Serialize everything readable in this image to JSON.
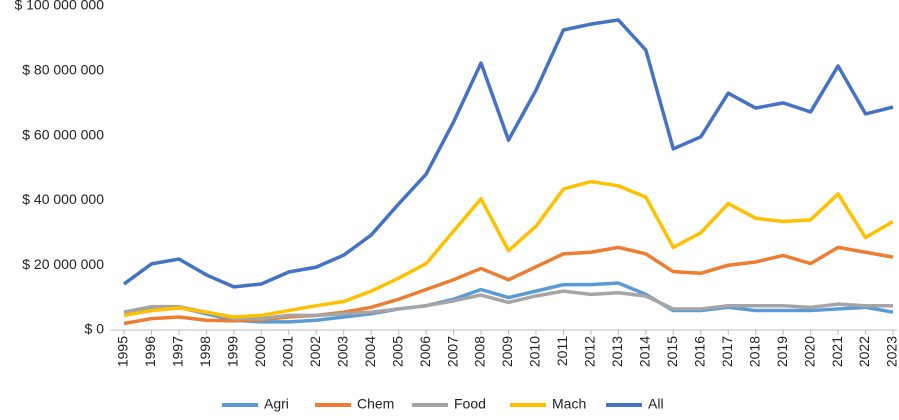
{
  "chart_data": {
    "type": "line",
    "categories": [
      "1995",
      "1996",
      "1997",
      "1998",
      "1999",
      "2000",
      "2001",
      "2002",
      "2003",
      "2004",
      "2005",
      "2006",
      "2007",
      "2008",
      "2009",
      "2010",
      "2011",
      "2012",
      "2013",
      "2014",
      "2015",
      "2016",
      "2017",
      "2018",
      "2019",
      "2020",
      "2021",
      "2022",
      "2023"
    ],
    "series": [
      {
        "name": "Agri",
        "color": "#5b9bd5",
        "values": [
          5500000,
          7000000,
          7000000,
          5000000,
          3000000,
          2500000,
          2500000,
          3000000,
          4000000,
          5000000,
          6500000,
          7500000,
          9500000,
          12500000,
          10000000,
          12000000,
          14000000,
          14000000,
          14500000,
          11000000,
          6000000,
          6000000,
          7000000,
          6000000,
          6000000,
          6000000,
          6500000,
          7000000,
          5500000
        ]
      },
      {
        "name": "Chem",
        "color": "#ed7d31",
        "values": [
          2000000,
          3500000,
          4000000,
          3000000,
          2800000,
          3200000,
          4000000,
          4500000,
          5500000,
          7000000,
          9500000,
          12500000,
          15500000,
          19000000,
          15500000,
          19500000,
          23500000,
          24000000,
          25500000,
          23500000,
          18000000,
          17500000,
          20000000,
          21000000,
          23000000,
          20500000,
          25500000,
          24000000,
          22500000
        ]
      },
      {
        "name": "Food",
        "color": "#a5a5a5",
        "values": [
          5500000,
          7200000,
          7200000,
          5500000,
          3500000,
          3500000,
          4500000,
          4500000,
          5000000,
          5500000,
          6500000,
          7500000,
          9000000,
          10800000,
          8500000,
          10500000,
          12000000,
          11000000,
          11500000,
          10500000,
          6500000,
          6500000,
          7500000,
          7500000,
          7500000,
          7000000,
          8000000,
          7500000,
          7500000
        ]
      },
      {
        "name": "Mach",
        "color": "#ffc000",
        "values": [
          4500000,
          6000000,
          6800000,
          5500000,
          4000000,
          4500000,
          6000000,
          7500000,
          8800000,
          12000000,
          16000000,
          20500000,
          30500000,
          40500000,
          24500000,
          32000000,
          43500000,
          45800000,
          44500000,
          41000000,
          25500000,
          30000000,
          39000000,
          34500000,
          33500000,
          34000000,
          42000000,
          28500000,
          33500000
        ]
      },
      {
        "name": "All",
        "color": "#4472c4",
        "values": [
          14200000,
          20400000,
          21900000,
          17000000,
          13300000,
          14200000,
          17900000,
          19400000,
          23100000,
          29300000,
          38900000,
          48100000,
          64200000,
          82400000,
          58600000,
          74000000,
          92600000,
          94400000,
          95700000,
          86400000,
          55900000,
          59600000,
          73100000,
          68500000,
          70100000,
          67300000,
          81500000,
          66700000,
          68800000
        ]
      }
    ],
    "ylim": [
      0,
      100000000
    ],
    "yticks": [
      {
        "value": 0,
        "label": "$ 0"
      },
      {
        "value": 20000000,
        "label": "$ 20 000 000"
      },
      {
        "value": 40000000,
        "label": "$ 40 000 000"
      },
      {
        "value": 60000000,
        "label": "$ 60 000 000"
      },
      {
        "value": 80000000,
        "label": "$ 80 000 000"
      },
      {
        "value": 100000000,
        "label": "$ 100 000 000"
      }
    ],
    "grid": false,
    "legend": "bottom"
  }
}
